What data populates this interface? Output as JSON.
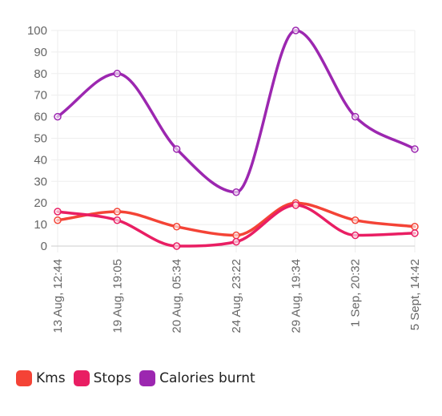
{
  "chart_data": {
    "type": "line",
    "categories": [
      "13 Aug, 12:44",
      "19 Aug, 19:05",
      "20 Aug, 05:34",
      "24 Aug, 23:22",
      "29 Aug, 19:34",
      "1 Sep, 20:32",
      "5 Sept, 14:42"
    ],
    "series": [
      {
        "name": "Kms",
        "color": "#f44336",
        "values": [
          12,
          16,
          9,
          5,
          20,
          12,
          9
        ]
      },
      {
        "name": "Stops",
        "color": "#e91e63",
        "values": [
          16,
          12,
          0,
          2,
          19,
          5,
          6
        ]
      },
      {
        "name": "Calories burnt",
        "color": "#9c27b0",
        "values": [
          60,
          80,
          45,
          25,
          100,
          60,
          45
        ]
      }
    ],
    "ylim": [
      0,
      100
    ],
    "yticks": [
      0,
      10,
      20,
      30,
      40,
      50,
      60,
      70,
      80,
      90,
      100
    ],
    "grid": true,
    "legend_position": "bottom-left",
    "title": "",
    "xlabel": "",
    "ylabel": ""
  }
}
